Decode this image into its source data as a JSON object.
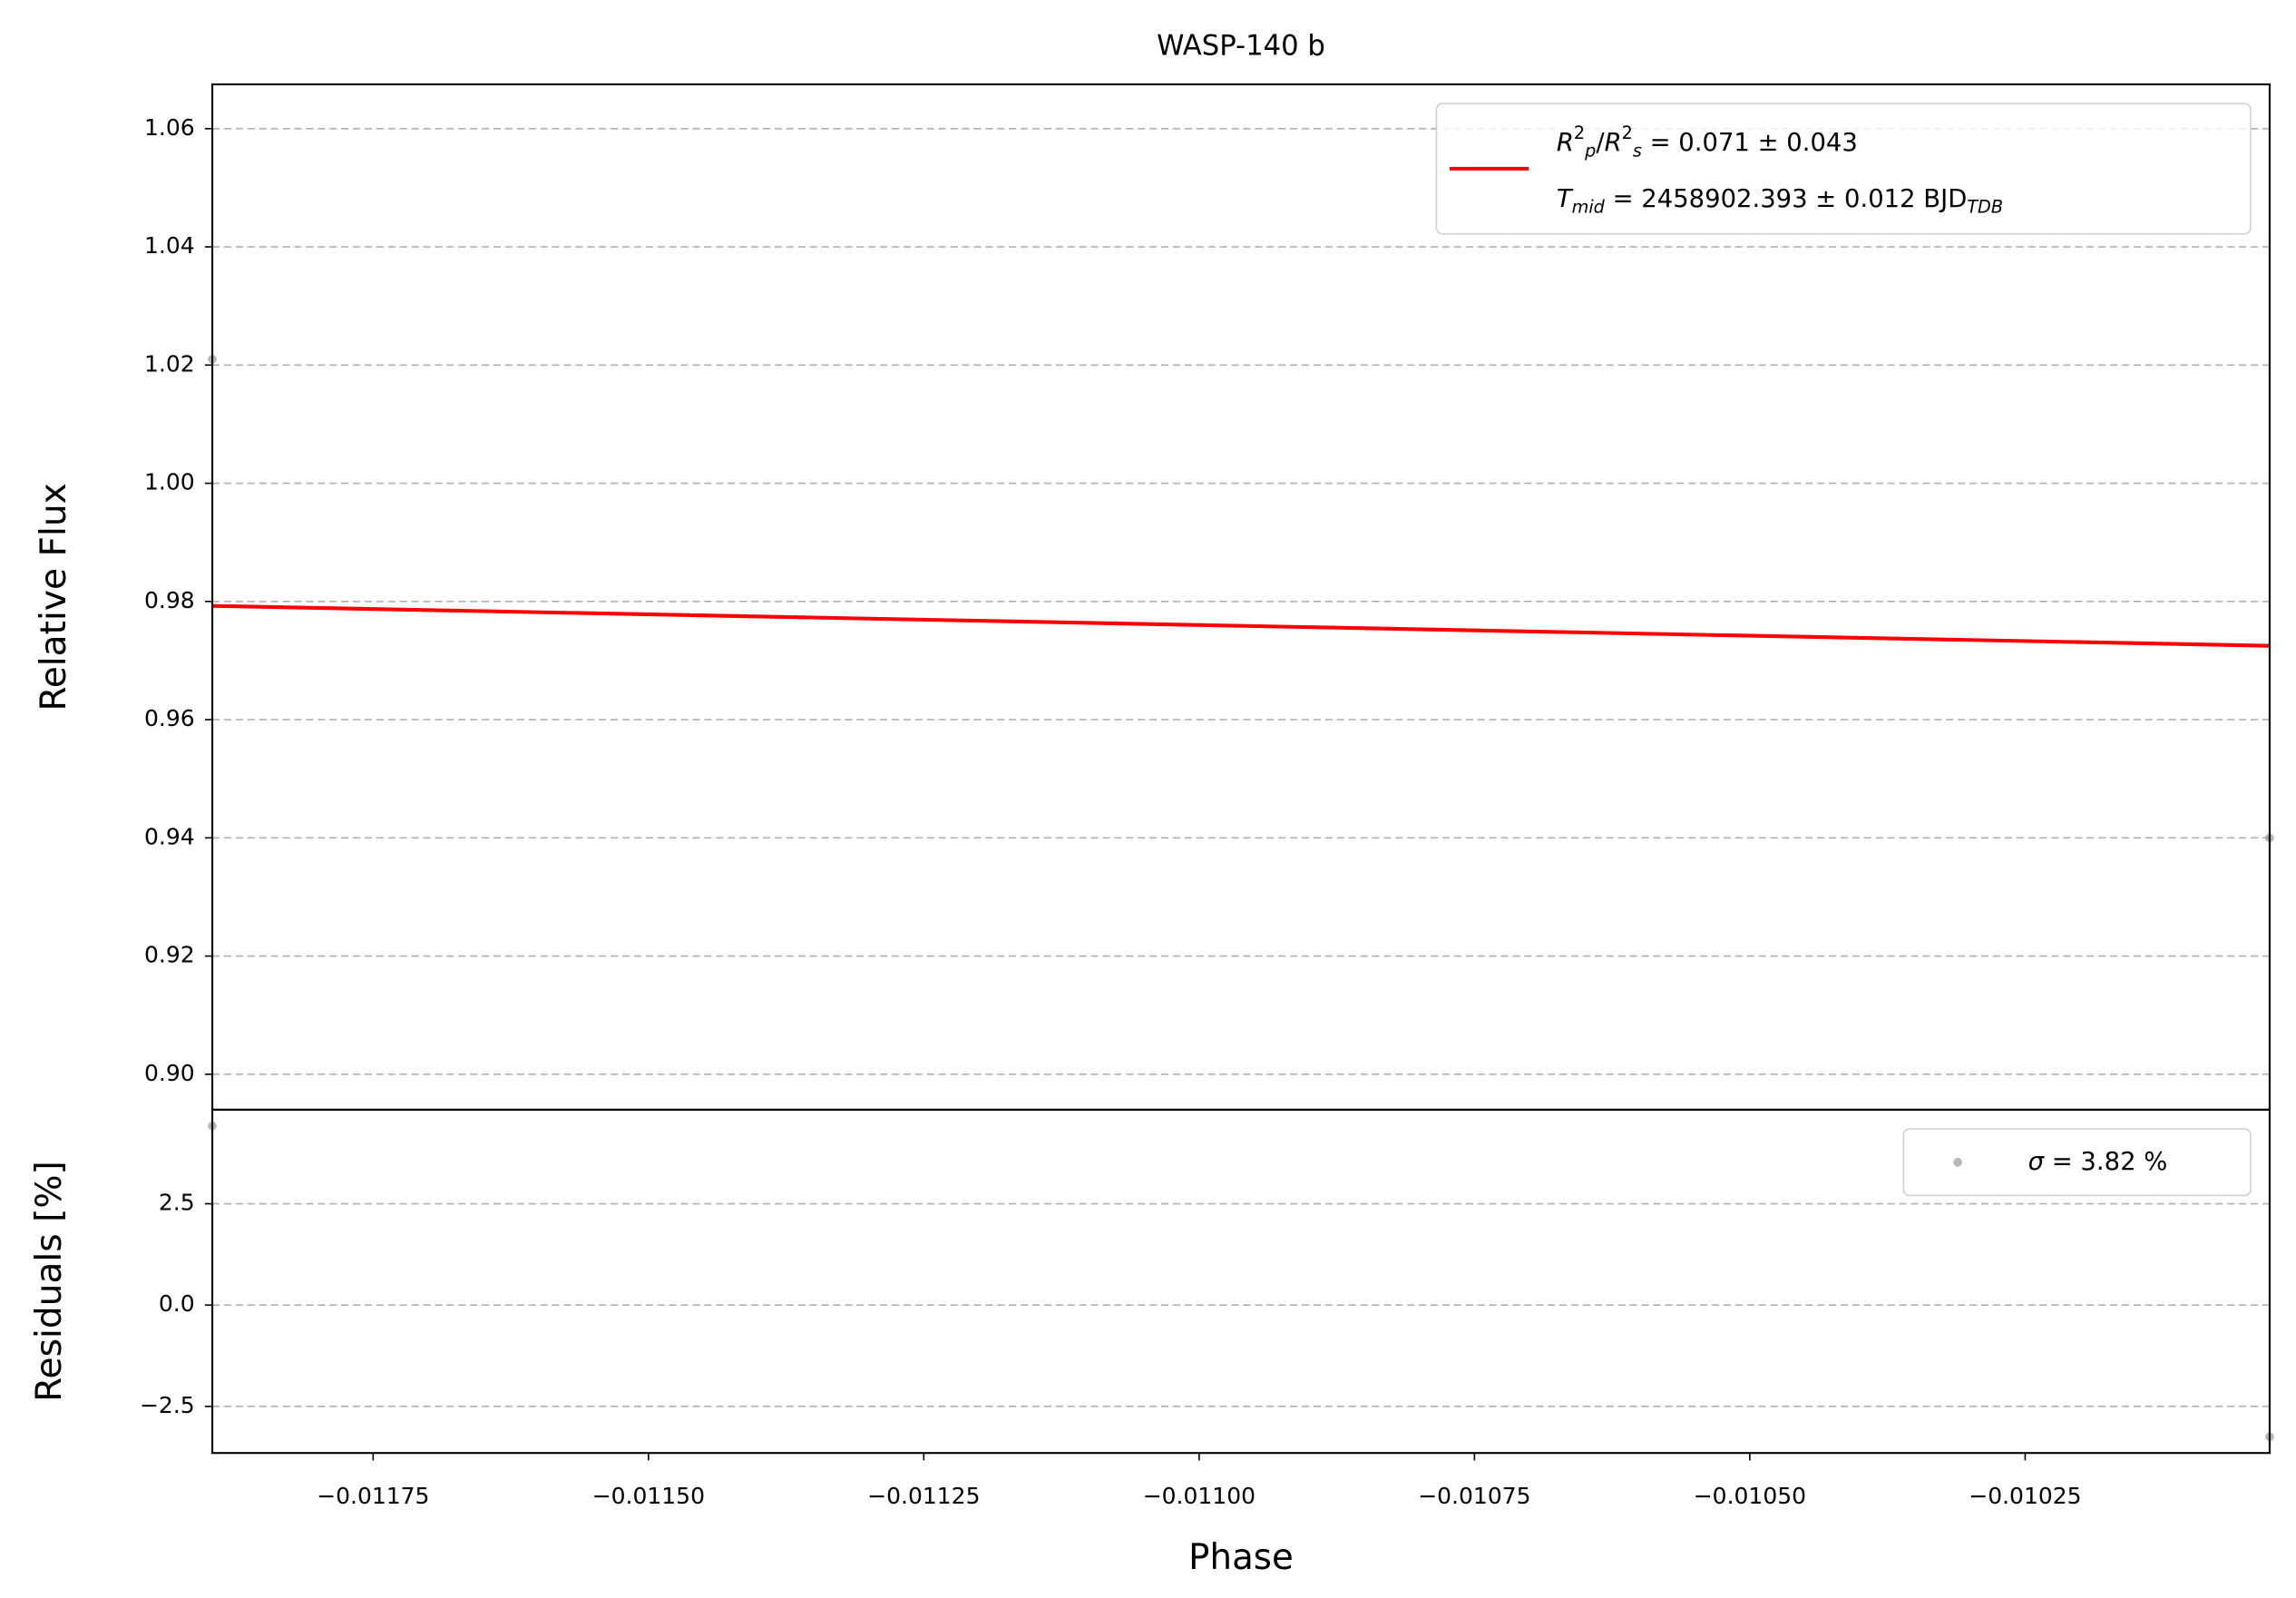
{
  "chart_data": [
    {
      "type": "line",
      "title": "WASP-140 b",
      "ylabel": "Relative Flux",
      "xlim": [
        -0.011896,
        -0.010028
      ],
      "ylim": [
        0.894,
        1.0675
      ],
      "yticks": [
        {
          "value": 0.9,
          "label": "0.90"
        },
        0.92,
        0.94,
        0.96,
        0.98,
        {
          "value": 1.0,
          "label": "1.00"
        },
        1.02,
        1.04,
        1.06
      ],
      "grid": "y",
      "legend": "upper right",
      "series": [
        {
          "type": "line",
          "color": "#ff0000",
          "x": [
            -0.011896,
            -0.010028
          ],
          "values": [
            0.97925,
            0.9725
          ],
          "name": [
            [
              {
                "text": "R",
                "italic": true
              },
              {
                "text": "2",
                "shift": "super"
              },
              {
                "text": "p",
                "italic": true,
                "shift": "sub"
              },
              {
                "text": "/"
              },
              {
                "text": "R",
                "italic": true
              },
              {
                "text": "2",
                "shift": "super"
              },
              {
                "text": "s",
                "italic": true,
                "shift": "sub"
              },
              {
                "text": " = 0.071 ± 0.043"
              }
            ],
            [
              {
                "text": "T",
                "italic": true
              },
              {
                "text": "mid",
                "italic": true,
                "shift": "sub"
              },
              {
                "text": " = 2458902.393 ± 0.012 BJD"
              },
              {
                "text": "TDB",
                "italic": true,
                "shift": "sub"
              }
            ]
          ]
        },
        {
          "type": "scatter",
          "color": "#999999",
          "x": [
            -0.011896,
            -0.010028
          ],
          "values": [
            1.021,
            0.94
          ]
        }
      ]
    },
    {
      "type": "scatter",
      "xlabel": "Phase",
      "ylabel": "Residuals [%]",
      "xlim": [
        -0.011896,
        -0.010028
      ],
      "ylim": [
        -3.65,
        4.82
      ],
      "xticks": [
        {
          "value": -0.01175,
          "label": "−0.01175"
        },
        {
          "value": -0.0115,
          "label": "−0.01150"
        },
        {
          "value": -0.01125,
          "label": "−0.01125"
        },
        {
          "value": -0.011,
          "label": "−0.01100"
        },
        {
          "value": -0.01075,
          "label": "−0.01075"
        },
        {
          "value": -0.0105,
          "label": "−0.01050"
        },
        {
          "value": -0.01025,
          "label": "−0.01025"
        }
      ],
      "yticks": [
        {
          "value": -2.5,
          "label": "−2.5"
        },
        {
          "value": 0,
          "label": "0.0"
        },
        2.5
      ],
      "grid": "y",
      "legend": "upper right",
      "series": [
        {
          "type": "scatter",
          "color": "#999999",
          "x": [
            -0.011896,
            -0.010028
          ],
          "values": [
            4.42,
            -3.25
          ],
          "name": [
            [
              {
                "text": "σ",
                "italic": true
              },
              {
                "text": " = 3.82 %"
              }
            ]
          ]
        }
      ]
    }
  ]
}
